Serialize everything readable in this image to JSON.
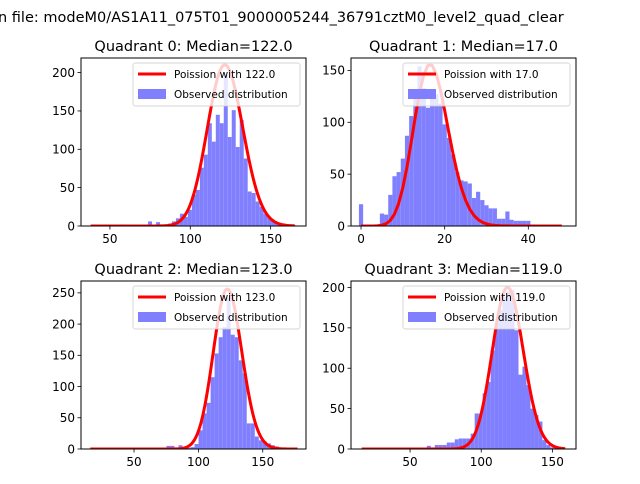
{
  "suptitle": "n file: modeM0/AS1A11_075T01_9000005244_36791cztM0_level2_quad_clear",
  "colors": {
    "bars": "#8080ff",
    "curve": "#ff0000"
  },
  "chart_data": [
    {
      "type": "bar",
      "title": "Quadrant 0: Median=122.0",
      "xlim": [
        32,
        172
      ],
      "ylim": [
        0,
        219
      ],
      "xticks": [
        50,
        100,
        150
      ],
      "yticks": [
        0,
        50,
        100,
        150,
        200
      ],
      "bin_start": 39,
      "bin_width": 2.48,
      "counts": [
        0,
        0,
        1,
        0,
        0,
        0,
        0,
        2,
        0,
        0,
        0,
        0,
        1,
        0,
        6,
        1,
        5,
        2,
        2,
        3,
        6,
        10,
        16,
        12,
        21,
        41,
        47,
        76,
        93,
        134,
        110,
        145,
        134,
        197,
        116,
        151,
        103,
        138,
        88,
        45,
        43,
        32,
        25,
        16,
        10,
        6,
        3,
        2,
        1,
        0,
        1
      ],
      "poisson": {
        "mean": 122.0,
        "peak": 210,
        "x_range": [
          38,
          165
        ]
      },
      "legend": {
        "curve_label": "Poission with 122.0",
        "bars_label": "Observed distribution",
        "position": "top-right"
      }
    },
    {
      "type": "bar",
      "title": "Quadrant 1: Median=17.0",
      "xlim": [
        -2.4,
        51.4
      ],
      "ylim": [
        0,
        162
      ],
      "xticks": [
        0,
        20,
        40
      ],
      "yticks": [
        0,
        50,
        100,
        150
      ],
      "bin_start": -0.5,
      "bin_width": 1,
      "counts": [
        21,
        0,
        0,
        0,
        0,
        12,
        11,
        30,
        48,
        52,
        65,
        87,
        106,
        126,
        154,
        133,
        114,
        123,
        127,
        118,
        98,
        85,
        69,
        52,
        44,
        43,
        41,
        27,
        33,
        25,
        20,
        17,
        17,
        7,
        7,
        14,
        6,
        5,
        5,
        5,
        5,
        1,
        1,
        0,
        0,
        0,
        0,
        0,
        0
      ],
      "poisson": {
        "mean": 17.0,
        "peak": 155,
        "x_range": [
          0,
          48.8
        ]
      },
      "legend": {
        "curve_label": "Poission with 17.0",
        "bars_label": "Observed distribution",
        "position": "top-right"
      }
    },
    {
      "type": "bar",
      "title": "Quadrant 2: Median=123.0",
      "xlim": [
        8.8,
        183.6
      ],
      "ylim": [
        0,
        269
      ],
      "xticks": [
        50,
        100,
        150
      ],
      "yticks": [
        0,
        50,
        100,
        150,
        200,
        250
      ],
      "bin_start": 19,
      "bin_width": 3.12,
      "counts": [
        0,
        0,
        0,
        0,
        0,
        0,
        0,
        0,
        0,
        0,
        0,
        0,
        0,
        1,
        0,
        0,
        1,
        0,
        5,
        5,
        1,
        6,
        2,
        2,
        3,
        8,
        30,
        57,
        74,
        115,
        153,
        179,
        195,
        243,
        183,
        179,
        142,
        121,
        41,
        41,
        20,
        14,
        12,
        9,
        6,
        4,
        2,
        1,
        1,
        0,
        0
      ],
      "poisson": {
        "mean": 123.0,
        "peak": 256,
        "x_range": [
          16,
          177
        ]
      },
      "legend": {
        "curve_label": "Poission with 123.0",
        "bars_label": "Observed distribution",
        "position": "top-right"
      }
    },
    {
      "type": "bar",
      "title": "Quadrant 3: Median=119.0",
      "xlim": [
        8.5,
        166.6
      ],
      "ylim": [
        0,
        208
      ],
      "xticks": [
        50,
        100,
        150
      ],
      "yticks": [
        0,
        50,
        100,
        150,
        200
      ],
      "bin_start": 17,
      "bin_width": 2.8,
      "counts": [
        0,
        0,
        0,
        0,
        0,
        0,
        0,
        0,
        0,
        0,
        0,
        0,
        0,
        0,
        1,
        1,
        4,
        2,
        5,
        5,
        5,
        8,
        8,
        12,
        13,
        13,
        13,
        19,
        44,
        44,
        69,
        83,
        122,
        155,
        172,
        188,
        195,
        197,
        147,
        92,
        102,
        79,
        50,
        42,
        34,
        11,
        5,
        2,
        1,
        0,
        0
      ],
      "poisson": {
        "mean": 119.0,
        "peak": 200,
        "x_range": [
          15.5,
          159
        ]
      },
      "legend": {
        "curve_label": "Poission with 119.0",
        "bars_label": "Observed distribution",
        "position": "top-right"
      }
    }
  ]
}
